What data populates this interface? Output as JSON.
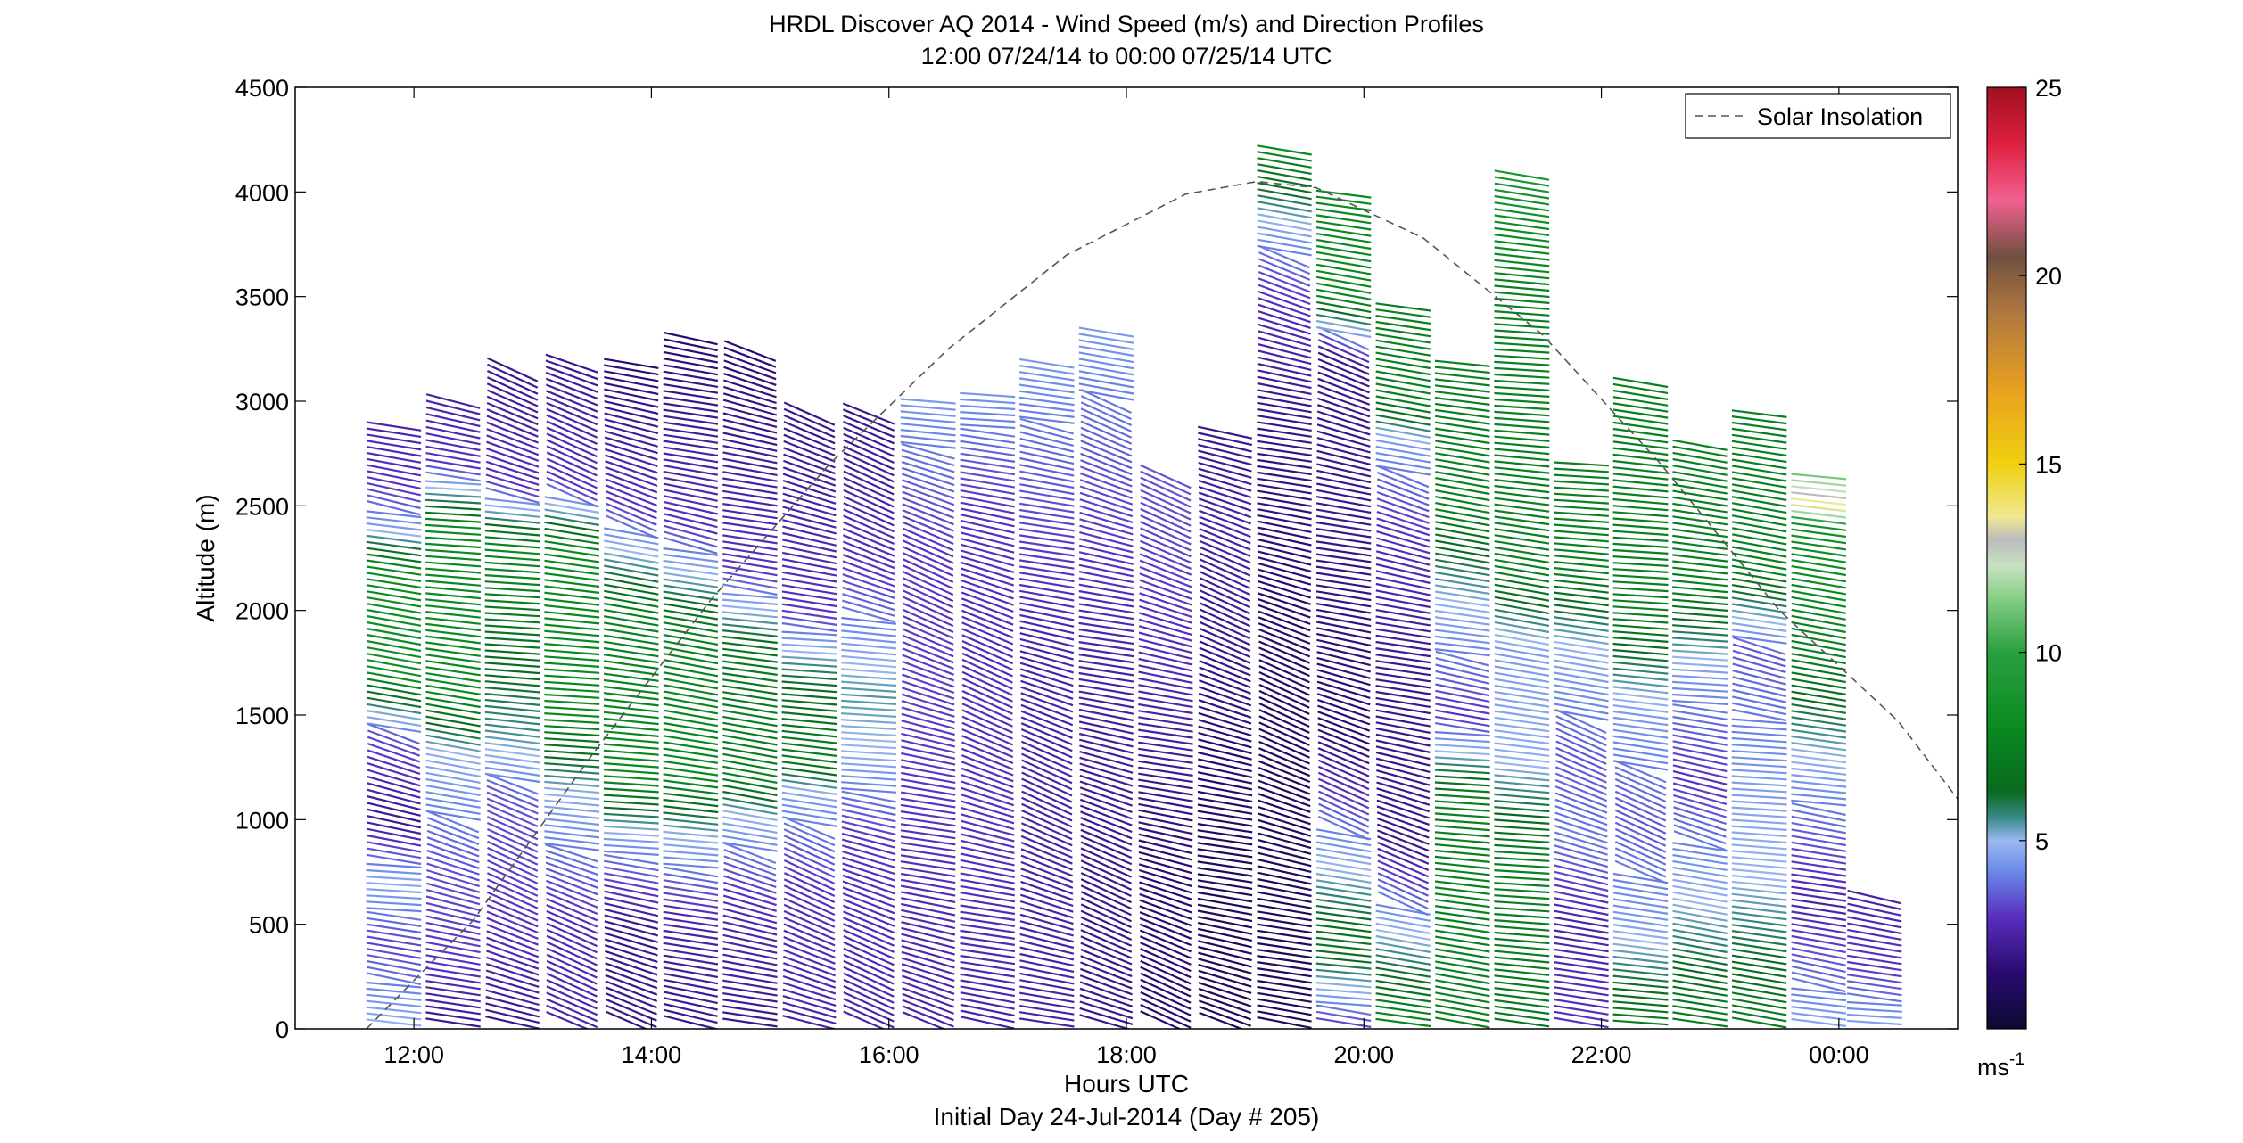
{
  "chart_data": {
    "type": "scatter",
    "title": "HRDL Discover AQ 2014 - Wind Speed (m/s) and Direction Profiles",
    "subtitle": "12:00 07/24/14 to 00:00 07/25/14  UTC",
    "xlabel": "Hours UTC",
    "xlabel_sub": "Initial Day 24-Jul-2014 (Day # 205)",
    "ylabel": "Altitude (m)",
    "xlim": [
      11,
      25
    ],
    "ylim": [
      0,
      4500
    ],
    "x_ticks": [
      12,
      14,
      16,
      18,
      20,
      22,
      24
    ],
    "x_tick_labels": [
      "12:00",
      "14:00",
      "16:00",
      "18:00",
      "20:00",
      "22:00",
      "00:00"
    ],
    "y_ticks": [
      0,
      500,
      1000,
      1500,
      2000,
      2500,
      3000,
      3500,
      4000,
      4500
    ],
    "y_tick_labels": [
      "0",
      "500",
      "1000",
      "1500",
      "2000",
      "2500",
      "3000",
      "3500",
      "4000",
      "4500"
    ],
    "legend": {
      "position": "top-right",
      "entries": [
        "Solar Insolation"
      ]
    },
    "colorbar": {
      "min": 0,
      "max": 25,
      "ticks": [
        5,
        10,
        15,
        20,
        25
      ],
      "tick_labels": [
        "5",
        "10",
        "15",
        "20",
        "25"
      ],
      "unit_label": "ms",
      "unit_exponent": "-1"
    },
    "solar_insolation": {
      "x": [
        11.6,
        12.5,
        13.5,
        14.5,
        15.5,
        16.5,
        17.5,
        18.5,
        19.1,
        19.6,
        20.5,
        21.5,
        22.5,
        23.5,
        24.5,
        25.0
      ],
      "y": [
        0,
        520,
        1310,
        2050,
        2700,
        3250,
        3700,
        3990,
        4050,
        4020,
        3780,
        3320,
        2700,
        2000,
        1470,
        1100
      ]
    },
    "profiles": [
      {
        "time": 11.83,
        "top": 2900,
        "speed": [
          [
            0,
            5
          ],
          [
            400,
            3.2
          ],
          [
            700,
            4.8
          ],
          [
            1000,
            2
          ],
          [
            1400,
            3.5
          ],
          [
            1700,
            8.5
          ],
          [
            2200,
            8
          ],
          [
            2400,
            4.5
          ],
          [
            2600,
            3
          ],
          [
            2900,
            2.5
          ]
        ]
      },
      {
        "time": 12.33,
        "top": 3000,
        "speed": [
          [
            0,
            2
          ],
          [
            300,
            3
          ],
          [
            800,
            3.5
          ],
          [
            1300,
            4.8
          ],
          [
            1600,
            8
          ],
          [
            2400,
            8
          ],
          [
            2700,
            3
          ],
          [
            3000,
            2.5
          ]
        ]
      },
      {
        "time": 12.83,
        "top": 3150,
        "speed": [
          [
            0,
            2
          ],
          [
            500,
            3
          ],
          [
            1100,
            3.5
          ],
          [
            1400,
            5.5
          ],
          [
            2300,
            8
          ],
          [
            2600,
            3
          ],
          [
            3150,
            2
          ]
        ]
      },
      {
        "time": 13.33,
        "top": 3200,
        "speed": [
          [
            0,
            2.5
          ],
          [
            500,
            2.8
          ],
          [
            1100,
            4.8
          ],
          [
            1500,
            8
          ],
          [
            2300,
            8
          ],
          [
            2600,
            3
          ],
          [
            3200,
            2
          ]
        ]
      },
      {
        "time": 13.83,
        "top": 3200,
        "speed": [
          [
            0,
            2
          ],
          [
            500,
            2
          ],
          [
            900,
            4.5
          ],
          [
            1200,
            8
          ],
          [
            2000,
            7.5
          ],
          [
            2500,
            3
          ],
          [
            3200,
            1.5
          ]
        ]
      },
      {
        "time": 14.33,
        "top": 3300,
        "speed": [
          [
            0,
            2
          ],
          [
            500,
            2.5
          ],
          [
            900,
            4.8
          ],
          [
            1200,
            8
          ],
          [
            1900,
            7.5
          ],
          [
            2400,
            3
          ],
          [
            3300,
            1.5
          ]
        ]
      },
      {
        "time": 14.83,
        "top": 3250,
        "speed": [
          [
            0,
            2
          ],
          [
            600,
            2.8
          ],
          [
            1000,
            4.8
          ],
          [
            1200,
            7.5
          ],
          [
            1800,
            7
          ],
          [
            2200,
            3
          ],
          [
            3250,
            1.5
          ]
        ]
      },
      {
        "time": 15.33,
        "top": 2950,
        "speed": [
          [
            0,
            2.5
          ],
          [
            700,
            3
          ],
          [
            1100,
            4.5
          ],
          [
            1300,
            7.5
          ],
          [
            1700,
            6
          ],
          [
            2000,
            3
          ],
          [
            2950,
            2
          ]
        ]
      },
      {
        "time": 15.83,
        "top": 2950,
        "speed": [
          [
            0,
            2.5
          ],
          [
            900,
            3
          ],
          [
            1300,
            4.8
          ],
          [
            1600,
            5.5
          ],
          [
            2200,
            3
          ],
          [
            2900,
            2
          ]
        ]
      },
      {
        "time": 16.33,
        "top": 3000,
        "speed": [
          [
            0,
            2.5
          ],
          [
            1000,
            3
          ],
          [
            1600,
            3.2
          ],
          [
            2300,
            3
          ],
          [
            3000,
            4.5
          ]
        ]
      },
      {
        "time": 16.83,
        "top": 3050,
        "speed": [
          [
            0,
            2.5
          ],
          [
            1000,
            3
          ],
          [
            1800,
            2.8
          ],
          [
            2500,
            3
          ],
          [
            3050,
            4.5
          ]
        ]
      },
      {
        "time": 17.33,
        "top": 3200,
        "speed": [
          [
            0,
            2.5
          ],
          [
            800,
            2.5
          ],
          [
            1800,
            2.5
          ],
          [
            2600,
            3.5
          ],
          [
            3200,
            4.5
          ]
        ]
      },
      {
        "time": 17.83,
        "top": 3330,
        "speed": [
          [
            0,
            2
          ],
          [
            700,
            2
          ],
          [
            1800,
            2.5
          ],
          [
            2700,
            3.5
          ],
          [
            3330,
            4.5
          ]
        ]
      },
      {
        "time": 18.33,
        "top": 2650,
        "speed": [
          [
            0,
            1.5
          ],
          [
            800,
            1.5
          ],
          [
            1500,
            2.5
          ],
          [
            2000,
            3
          ],
          [
            2650,
            3.5
          ]
        ]
      },
      {
        "time": 18.83,
        "top": 2850,
        "speed": [
          [
            0,
            1
          ],
          [
            800,
            1
          ],
          [
            1800,
            2
          ],
          [
            2400,
            2.5
          ],
          [
            2850,
            2
          ]
        ]
      },
      {
        "time": 19.33,
        "top": 4200,
        "speed": [
          [
            0,
            1
          ],
          [
            1100,
            1
          ],
          [
            2100,
            1.5
          ],
          [
            3000,
            2
          ],
          [
            3500,
            3
          ],
          [
            3800,
            4.5
          ],
          [
            4200,
            8
          ]
        ]
      },
      {
        "time": 19.83,
        "top": 4000,
        "speed": [
          [
            0,
            3
          ],
          [
            400,
            7
          ],
          [
            1400,
            1.5
          ],
          [
            2400,
            2
          ],
          [
            3200,
            2
          ],
          [
            3500,
            8
          ],
          [
            4000,
            8
          ]
        ]
      },
      {
        "time": 20.33,
        "top": 3450,
        "speed": [
          [
            0,
            8
          ],
          [
            900,
            2
          ],
          [
            1700,
            2
          ],
          [
            2400,
            3
          ],
          [
            2800,
            4.5
          ],
          [
            3000,
            7.5
          ],
          [
            3450,
            7.5
          ]
        ]
      },
      {
        "time": 20.83,
        "top": 3200,
        "speed": [
          [
            0,
            7.5
          ],
          [
            1100,
            7.5
          ],
          [
            1500,
            3
          ],
          [
            2000,
            4.8
          ],
          [
            2500,
            7.5
          ],
          [
            3200,
            7.5
          ]
        ]
      },
      {
        "time": 21.33,
        "top": 4100,
        "speed": [
          [
            0,
            7
          ],
          [
            800,
            7.5
          ],
          [
            1300,
            4.8
          ],
          [
            1800,
            4.5
          ],
          [
            2200,
            7.5
          ],
          [
            3500,
            7.5
          ],
          [
            4100,
            9
          ]
        ]
      },
      {
        "time": 21.83,
        "top": 2700,
        "speed": [
          [
            0,
            3
          ],
          [
            500,
            2.5
          ],
          [
            900,
            4
          ],
          [
            1300,
            3.5
          ],
          [
            1800,
            4.8
          ],
          [
            2200,
            7.5
          ],
          [
            2700,
            7.5
          ]
        ]
      },
      {
        "time": 22.33,
        "top": 3100,
        "speed": [
          [
            0,
            7.5
          ],
          [
            500,
            4.5
          ],
          [
            1000,
            3.5
          ],
          [
            1500,
            4.5
          ],
          [
            2000,
            7.5
          ],
          [
            3100,
            7.5
          ]
        ]
      },
      {
        "time": 22.83,
        "top": 2800,
        "speed": [
          [
            0,
            7.5
          ],
          [
            600,
            5
          ],
          [
            1200,
            3
          ],
          [
            1700,
            4.5
          ],
          [
            2100,
            7.5
          ],
          [
            2800,
            7.5
          ]
        ]
      },
      {
        "time": 23.33,
        "top": 2950,
        "speed": [
          [
            0,
            7.5
          ],
          [
            700,
            5
          ],
          [
            1200,
            4.5
          ],
          [
            1800,
            3.5
          ],
          [
            2200,
            7.5
          ],
          [
            2950,
            7.5
          ]
        ]
      },
      {
        "time": 23.83,
        "top": 2650,
        "speed": [
          [
            0,
            4.8
          ],
          [
            600,
            2.5
          ],
          [
            1200,
            4.5
          ],
          [
            1800,
            7.5
          ],
          [
            2400,
            8.5
          ],
          [
            2500,
            14
          ],
          [
            2650,
            11
          ]
        ]
      },
      {
        "time": 24.3,
        "top": 650,
        "speed": [
          [
            0,
            4.8
          ],
          [
            300,
            3
          ],
          [
            650,
            2.5
          ]
        ]
      }
    ]
  }
}
